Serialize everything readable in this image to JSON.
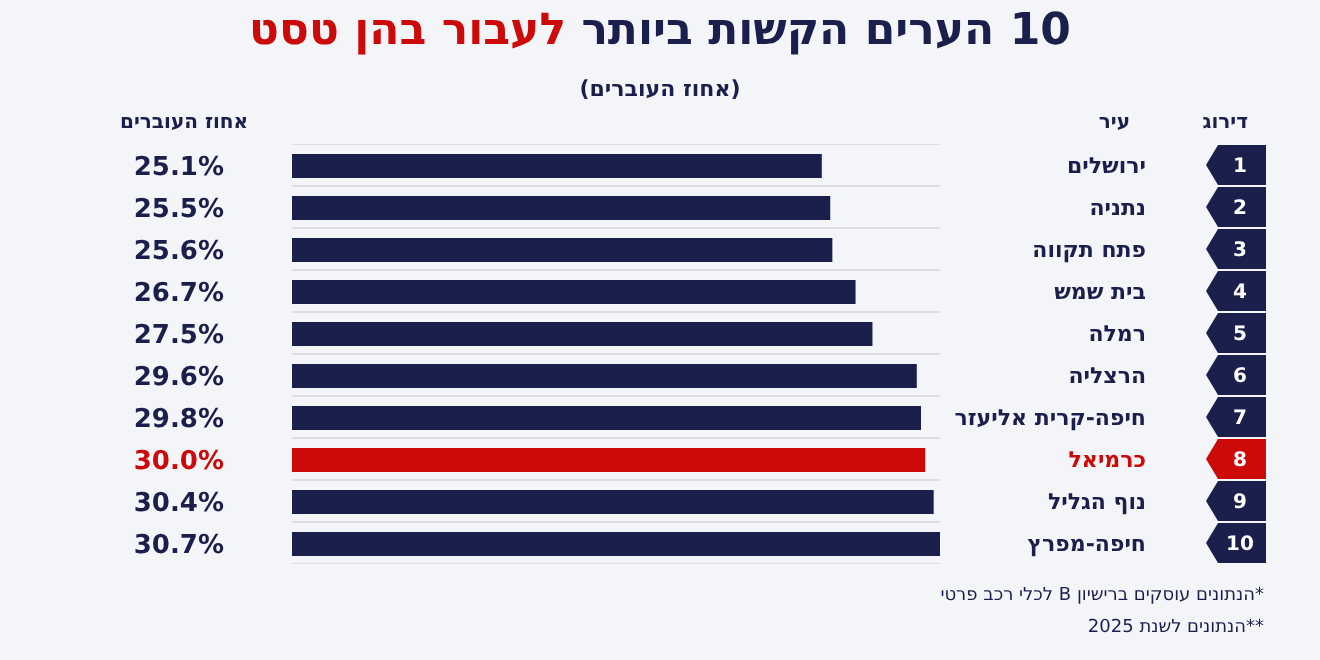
{
  "chart_data": {
    "type": "bar",
    "orientation": "horizontal",
    "title": "10 הערים הקשות ביותר לעבור בהן טסט",
    "subtitle": "(אחוז העוברים)",
    "ylabel": "עיר",
    "xlabel": "אחוז העוברים",
    "categories": [
      "ירושלים",
      "נתניה",
      "פתח תקווה",
      "בית שמש",
      "רמלה",
      "הרצליה",
      "חיפה-קרית אליעזר",
      "כרמיאל",
      "נוף הגליל",
      "חיפה-מפרץ"
    ],
    "values": [
      25.1,
      25.5,
      25.6,
      26.7,
      27.5,
      29.6,
      29.8,
      30.0,
      30.4,
      30.7
    ],
    "value_labels": [
      "25.1%",
      "25.5%",
      "25.6%",
      "26.7%",
      "27.5%",
      "29.6%",
      "29.8%",
      "30.0%",
      "30.4%",
      "30.7%"
    ],
    "colors": [
      "#1b1f4b",
      "#1b1f4b",
      "#1b1f4b",
      "#1b1f4b",
      "#1b1f4b",
      "#1b1f4b",
      "#1b1f4b",
      "#cc0a0a",
      "#1b1f4b",
      "#1b1f4b"
    ],
    "grid": "y",
    "tick_labels": "y",
    "annotations": [
      "דירוג",
      "1",
      "2",
      "3",
      "4",
      "5",
      "6",
      "7",
      "8",
      "9",
      "10",
      "*הנתונים עוסקים ברישיון B לכלי רכב פרטי",
      "**הנתונים לשנת 2025"
    ]
  }
}
